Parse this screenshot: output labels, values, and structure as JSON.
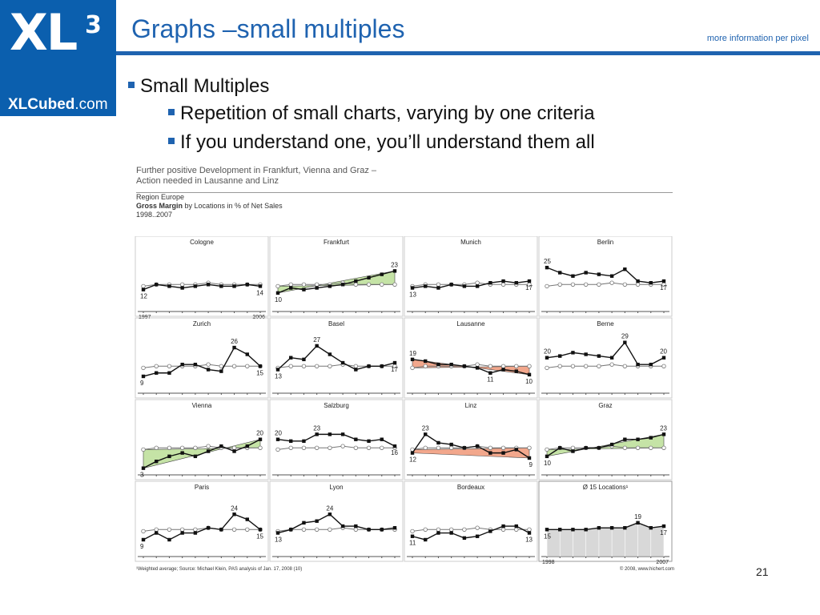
{
  "logo": {
    "mark": "XL",
    "superscript": "3",
    "url_bold": "XLCubed",
    "url_rest": ".com",
    "color": "#0b5fae"
  },
  "header": {
    "title": "Graphs –small multiples",
    "tagline": "more information per pixel",
    "accent": "#1f63b0"
  },
  "bullets": {
    "b1": "Small Multiples",
    "b2": "Repetition of small charts, varying by one criteria",
    "b3": "If you understand one, you’ll understand them all"
  },
  "figure": {
    "heading1": "Further positive Development in Frankfurt, Vienna and Graz –",
    "heading2": "Action needed in Lausanne and Linz",
    "region": "Region Europe",
    "measure_bold": "Gross Margin",
    "measure_rest": " by Locations in % of Net Sales",
    "period": "1998..2007",
    "footnote": "¹Weighted average; Source: Michael Klein, PAS analysis of Jan. 17, 2008 (10)",
    "copyright": "© 2008, www.hichert.com",
    "axis_start_label": "1997",
    "axis_end_label": "2006",
    "avg_axis_start_label": "1998",
    "avg_axis_end_label": "2007"
  },
  "chart_data": {
    "type": "line",
    "title": "Gross Margin by Locations in % of Net Sales",
    "x": [
      1,
      2,
      3,
      4,
      5,
      6,
      7,
      8,
      9,
      10
    ],
    "ylim": [
      0,
      35
    ],
    "colors": {
      "actual": "#111111",
      "average": "#777777",
      "up_band": "#c5e3a6",
      "down_band": "#f2a78c",
      "avg_fill": "#c8c8c8"
    },
    "panels": [
      {
        "name": "Cologne",
        "first_label": "12",
        "last_label": "14",
        "trend": "none",
        "values": [
          12,
          15,
          14,
          13,
          14,
          15,
          14,
          14,
          15,
          14
        ],
        "average": [
          14,
          15,
          15,
          15,
          15,
          16,
          15,
          15,
          15,
          15
        ]
      },
      {
        "name": "Frankfurt",
        "first_label": "10",
        "last_label": "23",
        "trend": "up",
        "values": [
          10,
          13,
          12,
          13,
          14,
          15,
          17,
          19,
          21,
          23
        ],
        "average": [
          14,
          15,
          15,
          15,
          15,
          16,
          15,
          15,
          15,
          15
        ]
      },
      {
        "name": "Munich",
        "first_label": "13",
        "last_label": "17",
        "trend": "none",
        "values": [
          13,
          14,
          13,
          15,
          14,
          14,
          16,
          17,
          16,
          17
        ],
        "average": [
          14,
          15,
          15,
          15,
          15,
          16,
          15,
          15,
          15,
          15
        ]
      },
      {
        "name": "Berlin",
        "first_label": "25",
        "last_label": "17",
        "trend": "none",
        "values": [
          25,
          22,
          20,
          22,
          21,
          20,
          24,
          17,
          16,
          17
        ],
        "average": [
          14,
          15,
          15,
          15,
          15,
          16,
          15,
          15,
          15,
          15
        ]
      },
      {
        "name": "Zurich",
        "first_label": "9",
        "last_label": "15",
        "trend": "none",
        "values": [
          9,
          11,
          11,
          16,
          16,
          13,
          12,
          26,
          22,
          15
        ],
        "average": [
          14,
          15,
          15,
          15,
          15,
          16,
          15,
          15,
          15,
          15
        ]
      },
      {
        "name": "Basel",
        "first_label": "13",
        "last_label": "17",
        "trend": "none",
        "values": [
          13,
          20,
          19,
          27,
          22,
          17,
          13,
          15,
          15,
          17
        ],
        "average": [
          14,
          15,
          15,
          15,
          15,
          16,
          15,
          15,
          15,
          15
        ]
      },
      {
        "name": "Lausanne",
        "first_label": "19",
        "last_label": "10",
        "trend": "down",
        "values": [
          19,
          18,
          16,
          16,
          15,
          14,
          11,
          13,
          12,
          10
        ],
        "average": [
          14,
          15,
          15,
          15,
          15,
          16,
          15,
          15,
          15,
          15
        ]
      },
      {
        "name": "Berne",
        "first_label": "20",
        "last_label": "20",
        "trend": "none",
        "values": [
          20,
          21,
          23,
          22,
          21,
          20,
          29,
          16,
          16,
          20
        ],
        "average": [
          14,
          15,
          15,
          15,
          15,
          16,
          15,
          15,
          15,
          15
        ]
      },
      {
        "name": "Vienna",
        "first_label": "3",
        "last_label": "20",
        "trend": "up",
        "values": [
          3,
          7,
          10,
          12,
          10,
          13,
          16,
          13,
          16,
          20
        ],
        "average": [
          14,
          15,
          15,
          15,
          15,
          16,
          15,
          15,
          15,
          15
        ]
      },
      {
        "name": "Salzburg",
        "first_label": "20",
        "last_label": "16",
        "trend": "none",
        "values": [
          20,
          19,
          19,
          23,
          23,
          23,
          20,
          19,
          20,
          16
        ],
        "average": [
          14,
          15,
          15,
          15,
          15,
          16,
          15,
          15,
          15,
          15
        ]
      },
      {
        "name": "Linz",
        "first_label": "12",
        "last_label": "9",
        "trend": "down",
        "values": [
          12,
          23,
          18,
          17,
          15,
          16,
          12,
          12,
          14,
          9
        ],
        "average": [
          14,
          15,
          15,
          15,
          15,
          16,
          15,
          15,
          15,
          15
        ]
      },
      {
        "name": "Graz",
        "first_label": "10",
        "last_label": "23",
        "trend": "up",
        "values": [
          10,
          15,
          13,
          15,
          15,
          17,
          20,
          20,
          21,
          23
        ],
        "average": [
          14,
          15,
          15,
          15,
          15,
          16,
          15,
          15,
          15,
          15
        ]
      },
      {
        "name": "Paris",
        "first_label": "9",
        "last_label": "15",
        "trend": "none",
        "values": [
          9,
          13,
          9,
          13,
          13,
          16,
          15,
          24,
          21,
          15
        ],
        "average": [
          14,
          15,
          15,
          15,
          15,
          16,
          15,
          15,
          15,
          15
        ]
      },
      {
        "name": "Lyon",
        "first_label": "13",
        "last_label": "",
        "trend": "none",
        "values": [
          13,
          15,
          19,
          20,
          24,
          17,
          17,
          15,
          15,
          16
        ],
        "average": [
          14,
          15,
          15,
          15,
          15,
          16,
          15,
          15,
          15,
          15
        ]
      },
      {
        "name": "Bordeaux",
        "first_label": "11",
        "last_label": "13",
        "trend": "none",
        "values": [
          11,
          9,
          13,
          13,
          10,
          11,
          14,
          17,
          17,
          13
        ],
        "average": [
          14,
          15,
          15,
          15,
          15,
          16,
          15,
          15,
          15,
          15
        ]
      },
      {
        "name": "Ø 15 Locations¹",
        "first_label": "15",
        "last_label": "17",
        "trend": "average",
        "values": [
          15,
          15,
          15,
          15,
          16,
          16,
          16,
          19,
          16,
          17
        ],
        "average": []
      }
    ],
    "point_labels": [
      {
        "panel": 4,
        "index": 7,
        "text": "26"
      },
      {
        "panel": 5,
        "index": 3,
        "text": "27"
      },
      {
        "panel": 6,
        "index": 6,
        "text": "11"
      },
      {
        "panel": 7,
        "index": 6,
        "text": "29"
      },
      {
        "panel": 9,
        "index": 3,
        "text": "23"
      },
      {
        "panel": 10,
        "index": 1,
        "text": "23"
      },
      {
        "panel": 12,
        "index": 7,
        "text": "24"
      },
      {
        "panel": 13,
        "index": 4,
        "text": "24"
      },
      {
        "panel": 15,
        "index": 7,
        "text": "19"
      }
    ]
  }
}
